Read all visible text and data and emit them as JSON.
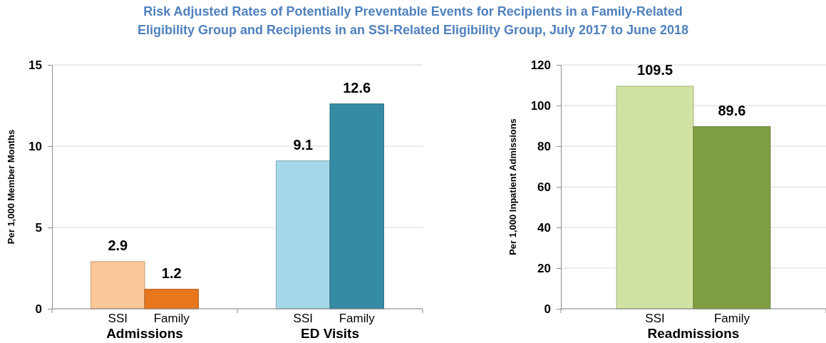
{
  "chart_data": [
    {
      "type": "bar",
      "title": "Risk Adjusted Rates of Potentially Preventable Events for Recipients in a Family-Related Eligibility Group and Recipients in an SSI-Related Eligibility Group, July 2017 to June 2018",
      "ylabel": "Per 1,000 Member Months",
      "categories": [
        "Admissions",
        "ED Visits"
      ],
      "series": [
        {
          "name": "SSI",
          "colors": [
            "#fac898",
            "#a5d9e9"
          ],
          "values": [
            2.9,
            9.1
          ]
        },
        {
          "name": "Family",
          "colors": [
            "#e8761c",
            "#368ba4"
          ],
          "values": [
            1.2,
            12.6
          ]
        }
      ],
      "ylim": [
        0,
        15
      ],
      "yticks": [
        0,
        5,
        10,
        15
      ],
      "grid": "y",
      "data_labels": true
    },
    {
      "type": "bar",
      "ylabel": "Per 1,000 Inpatient Admissions",
      "categories": [
        "Readmissions"
      ],
      "series": [
        {
          "name": "SSI",
          "colors": [
            "#d0e3a2"
          ],
          "values": [
            109.5
          ]
        },
        {
          "name": "Family",
          "colors": [
            "#809f42"
          ],
          "values": [
            89.6
          ]
        }
      ],
      "ylim": [
        0,
        120
      ],
      "yticks": [
        0,
        20,
        40,
        60,
        80,
        100,
        120
      ],
      "grid": "y",
      "data_labels": true
    }
  ]
}
